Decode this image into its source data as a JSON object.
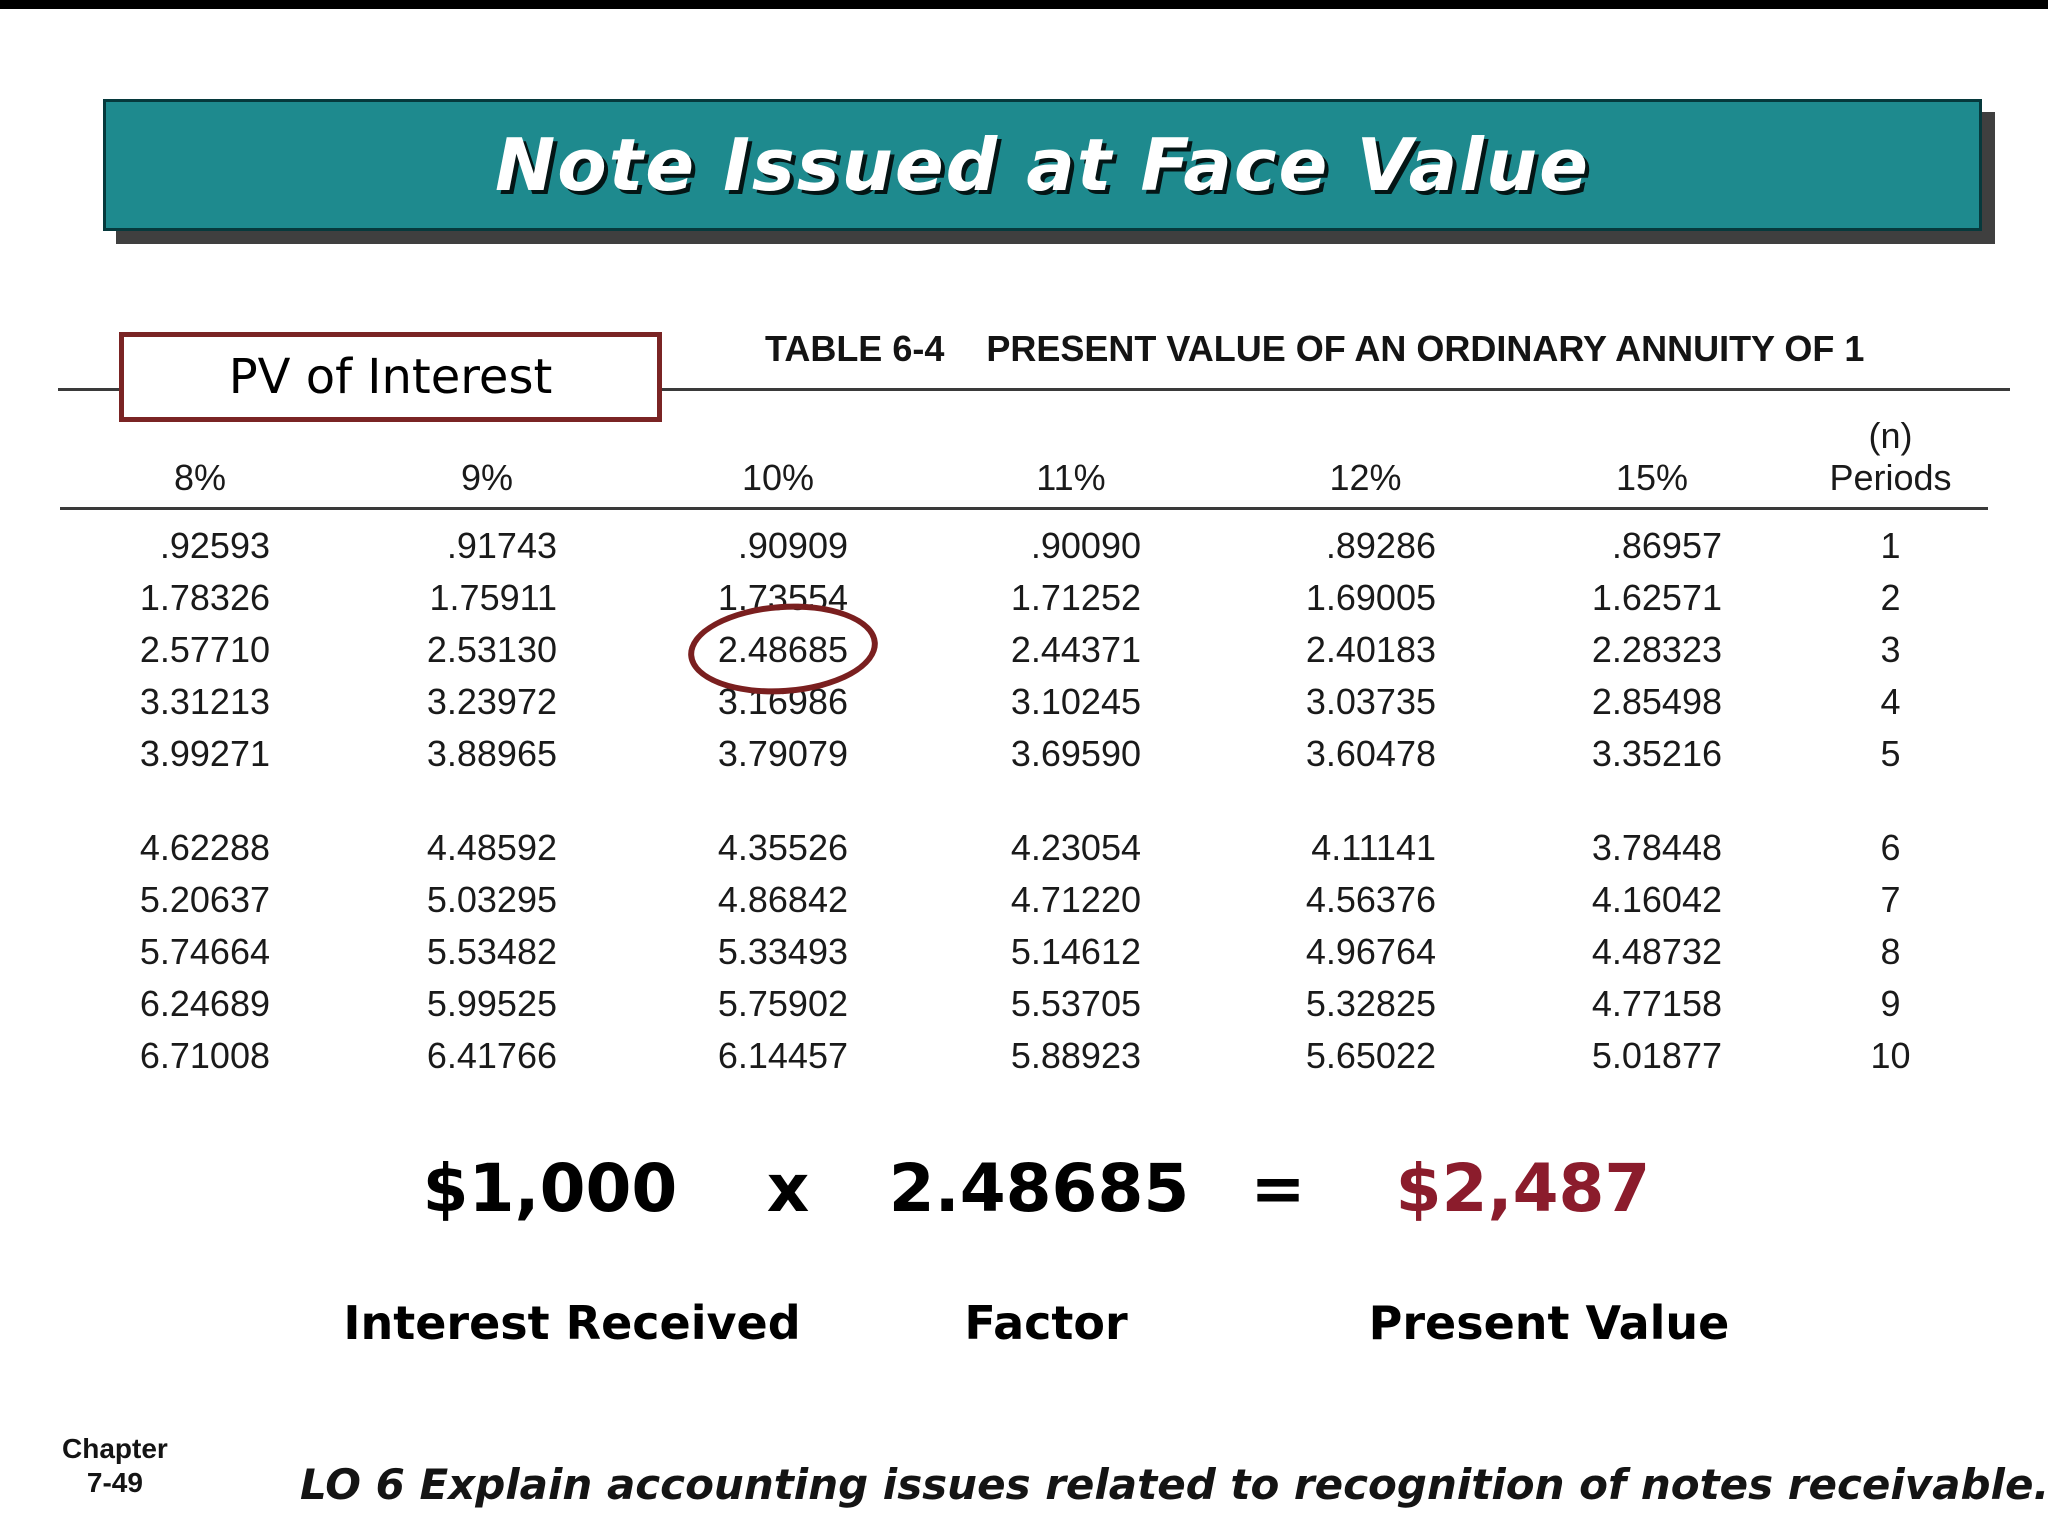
{
  "slide": {
    "title": "Note Issued at Face Value",
    "pv_label": "PV of Interest",
    "table": {
      "caption_label": "TABLE 6-4",
      "caption_text": "PRESENT VALUE OF AN ORDINARY ANNUITY OF 1",
      "periods_header_top": "(n)",
      "periods_header_bottom": "Periods",
      "columns": [
        "8%",
        "9%",
        "10%",
        "11%",
        "12%",
        "15%"
      ],
      "rows": [
        {
          "values": [
            ".92593",
            ".91743",
            ".90909",
            ".90090",
            ".89286",
            ".86957"
          ],
          "period": "1"
        },
        {
          "values": [
            "1.78326",
            "1.75911",
            "1.73554",
            "1.71252",
            "1.69005",
            "1.62571"
          ],
          "period": "2"
        },
        {
          "values": [
            "2.57710",
            "2.53130",
            "2.48685",
            "2.44371",
            "2.40183",
            "2.28323"
          ],
          "period": "3"
        },
        {
          "values": [
            "3.31213",
            "3.23972",
            "3.16986",
            "3.10245",
            "3.03735",
            "2.85498"
          ],
          "period": "4"
        },
        {
          "values": [
            "3.99271",
            "3.88965",
            "3.79079",
            "3.69590",
            "3.60478",
            "3.35216"
          ],
          "period": "5"
        },
        {
          "values": [
            "4.62288",
            "4.48592",
            "4.35526",
            "4.23054",
            "4.11141",
            "3.78448"
          ],
          "period": "6"
        },
        {
          "values": [
            "5.20637",
            "5.03295",
            "4.86842",
            "4.71220",
            "4.56376",
            "4.16042"
          ],
          "period": "7"
        },
        {
          "values": [
            "5.74664",
            "5.53482",
            "5.33493",
            "5.14612",
            "4.96764",
            "4.48732"
          ],
          "period": "8"
        },
        {
          "values": [
            "6.24689",
            "5.99525",
            "5.75902",
            "5.53705",
            "5.32825",
            "4.77158"
          ],
          "period": "9"
        },
        {
          "values": [
            "6.71008",
            "6.41766",
            "6.14457",
            "5.88923",
            "5.65022",
            "5.01877"
          ],
          "period": "10"
        }
      ],
      "gap_before_row_index": 5,
      "circled": {
        "row_index": 2,
        "col_index": 2
      }
    },
    "equation": {
      "amount": "$1,000",
      "times": "x",
      "factor": "2.48685",
      "equals": "=",
      "result": "$2,487",
      "labels": [
        "Interest Received",
        "Factor",
        "Present Value"
      ]
    },
    "footer": {
      "chapter_line1": "Chapter",
      "chapter_line2": "7-49",
      "lo_text": "LO 6  Explain accounting issues related to recognition of notes receivable."
    },
    "colors": {
      "banner_bg": "#1e8a8e",
      "banner_border": "#06393c",
      "shadow": "#3f3f3f",
      "maroon": "#7a1f1f",
      "result": "#8b1c2c",
      "box_border": "#7a2424"
    }
  }
}
